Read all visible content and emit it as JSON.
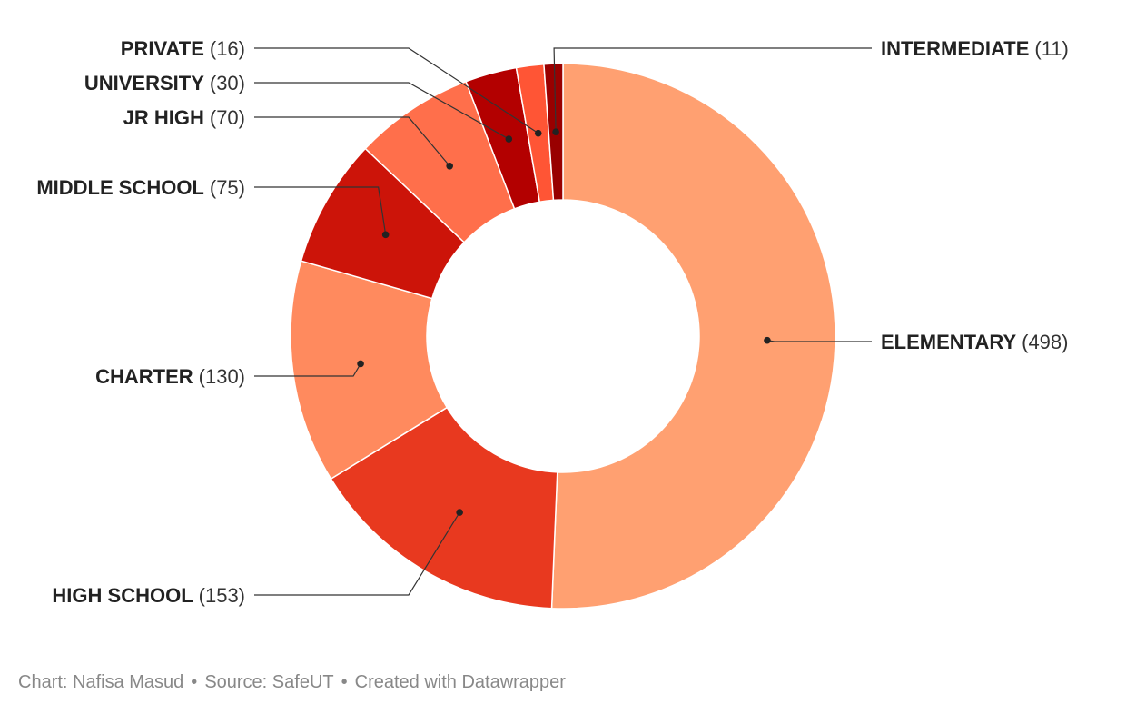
{
  "chart_data": {
    "type": "pie",
    "variant": "donut",
    "categories": [
      "ELEMENTARY",
      "HIGH SCHOOL",
      "CHARTER",
      "MIDDLE SCHOOL",
      "JR HIGH",
      "UNIVERSITY",
      "PRIVATE",
      "INTERMEDIATE"
    ],
    "values": [
      498,
      153,
      130,
      75,
      70,
      30,
      16,
      11
    ],
    "value_labels": [
      "(498)",
      "(153)",
      "(130)",
      "(75)",
      "(70)",
      "(30)",
      "(16)",
      "(11)"
    ],
    "colors": [
      "#ffa071",
      "#e8391f",
      "#ff8a5e",
      "#cc1409",
      "#ff6f4b",
      "#b30000",
      "#ff5535",
      "#990000"
    ],
    "title": "",
    "xlabel": "",
    "ylabel": ""
  },
  "footer": {
    "chart_credit": "Chart: Nafisa Masud",
    "source": "Source: SafeUT",
    "created_with": "Created with Datawrapper",
    "separator": "•"
  }
}
